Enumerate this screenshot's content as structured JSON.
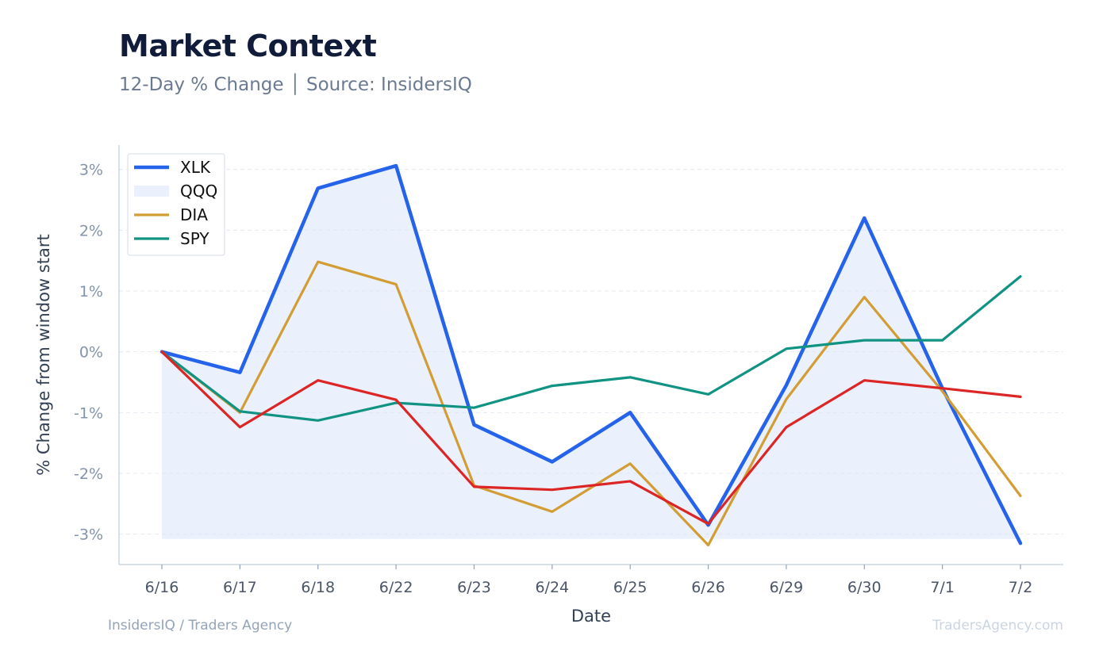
{
  "header": {
    "title": "Market Context",
    "subtitle": "12-Day % Change │ Source: InsidersIQ"
  },
  "footer": {
    "left": "InsidersIQ / Traders Agency",
    "right": "TradersAgency.com"
  },
  "chart_data": {
    "type": "line",
    "title": "Market Context",
    "subtitle": "12-Day % Change │ Source: InsidersIQ",
    "xlabel": "Date",
    "ylabel": "% Change from window start",
    "categories": [
      "6/16",
      "6/17",
      "6/18",
      "6/22",
      "6/23",
      "6/24",
      "6/25",
      "6/26",
      "6/29",
      "6/30",
      "7/1",
      "7/2"
    ],
    "yticks": [
      3,
      2,
      1,
      0,
      -1,
      -2,
      -3
    ],
    "ytick_labels": [
      "3%",
      "2%",
      "1%",
      "0%",
      "-1%",
      "-2%",
      "-3%"
    ],
    "ylim": [
      -3.5,
      3.4
    ],
    "grid": true,
    "legend_position": "top-left",
    "fill_baseline": -3.08,
    "series": [
      {
        "name": "XLK",
        "color": "#2563eb",
        "values": [
          0,
          -0.34,
          2.69,
          3.06,
          -1.2,
          -1.81,
          -1.0,
          -2.85,
          -0.55,
          2.2,
          -0.6,
          -3.15
        ]
      },
      {
        "name": "QQQ",
        "color": "#dbe6fa",
        "style": "area",
        "values": [
          0,
          -0.34,
          2.69,
          3.06,
          -1.2,
          -1.81,
          -1.0,
          -2.85,
          -0.55,
          2.2,
          -0.6,
          -3.15
        ]
      },
      {
        "name": "DIA",
        "color": "#d39d35",
        "values": [
          0,
          -1.0,
          1.48,
          1.11,
          -2.2,
          -2.63,
          -1.84,
          -3.18,
          -0.78,
          0.9,
          -0.65,
          -2.37
        ]
      },
      {
        "name": "SPY",
        "color": "#109383",
        "values": [
          0,
          -0.98,
          -1.13,
          -0.84,
          -0.92,
          -0.56,
          -0.42,
          -0.7,
          0.05,
          0.19,
          0.19,
          1.24
        ]
      },
      {
        "color": "#dc2626",
        "values": [
          0,
          -1.24,
          -0.47,
          -0.79,
          -2.22,
          -2.27,
          -2.13,
          -2.83,
          -1.24,
          -0.47,
          -0.6,
          -0.74
        ]
      }
    ]
  }
}
